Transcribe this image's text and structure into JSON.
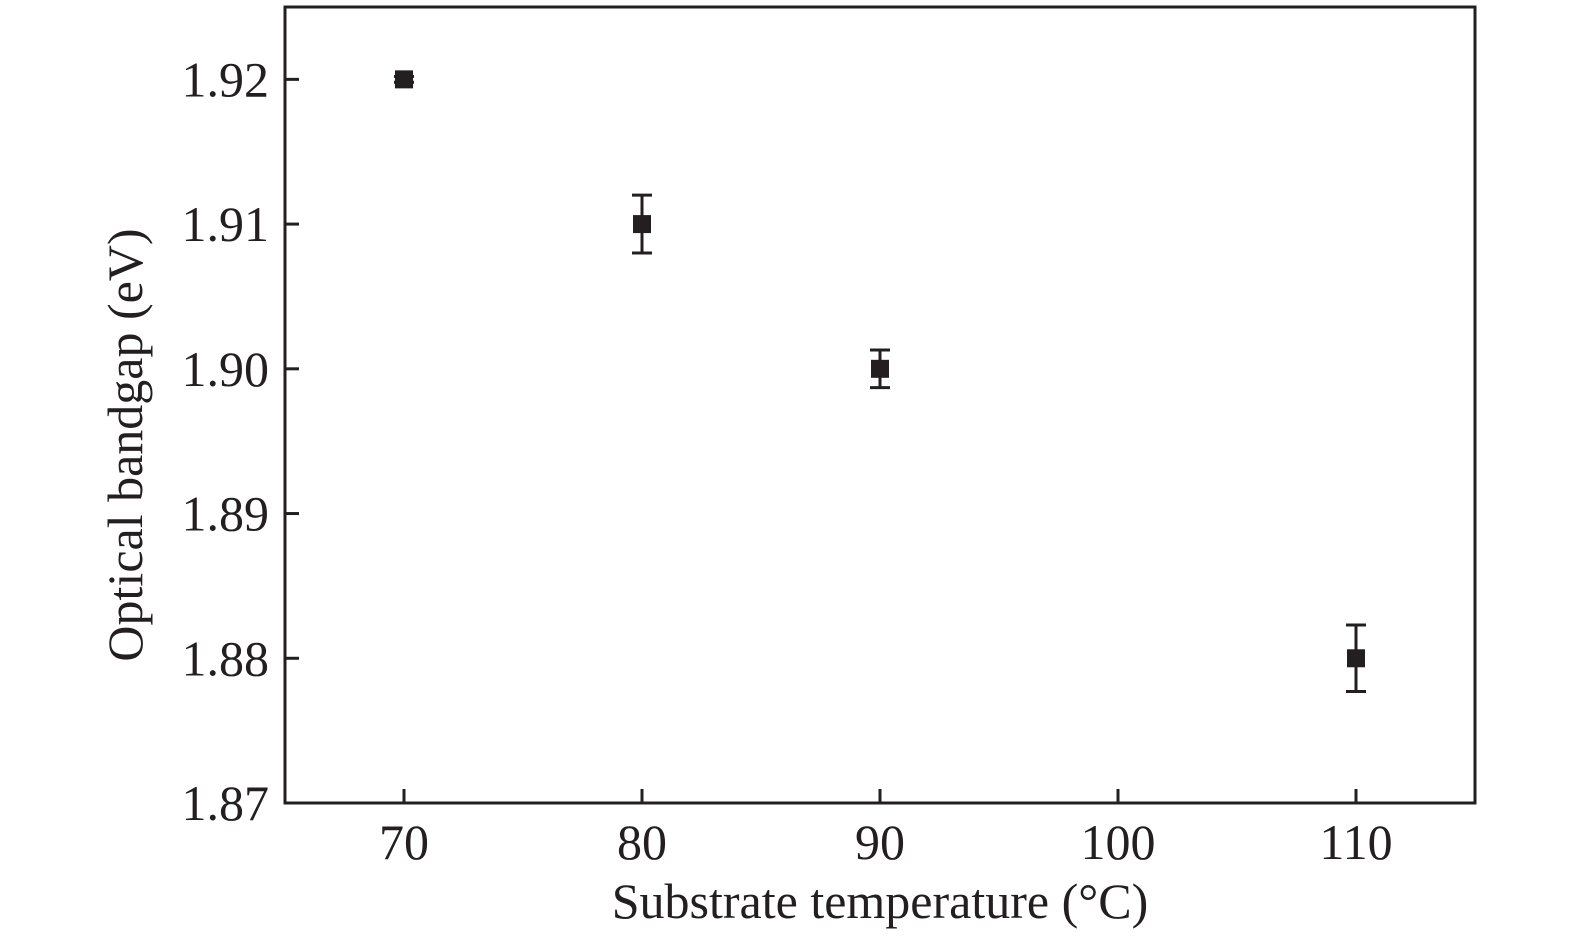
{
  "chart_data": {
    "type": "scatter",
    "title": "",
    "xlabel": "Substrate temperature (°C)",
    "ylabel": "Optical bandgap (eV)",
    "xlim": [
      65,
      115
    ],
    "ylim": [
      1.87,
      1.925
    ],
    "xticks": [
      70,
      80,
      90,
      100,
      110
    ],
    "xtick_labels": [
      "70",
      "80",
      "90",
      "100",
      "110"
    ],
    "yticks": [
      1.87,
      1.88,
      1.89,
      1.9,
      1.91,
      1.92
    ],
    "ytick_labels": [
      "1.87",
      "1.88",
      "1.89",
      "1.90",
      "1.91",
      "1.92"
    ],
    "grid": false,
    "legend": "none",
    "marker": "square",
    "marker_color": "#231f20",
    "series": [
      {
        "x": [
          70,
          80,
          90,
          110
        ],
        "y": [
          1.92,
          1.91,
          1.9,
          1.88
        ],
        "error": [
          0.0002,
          0.002,
          0.0013,
          0.0023
        ]
      }
    ]
  }
}
